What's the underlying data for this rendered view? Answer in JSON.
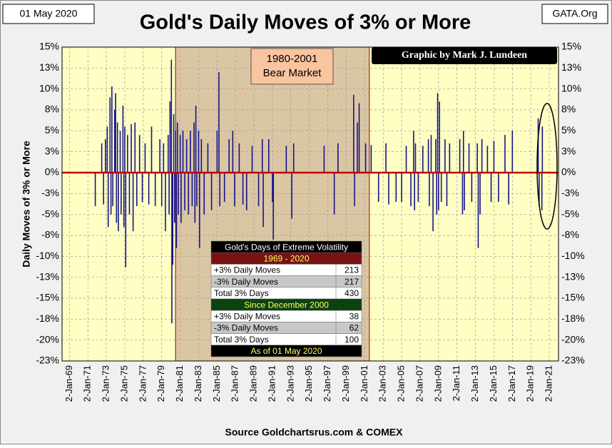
{
  "chart_data": {
    "type": "spike",
    "title": "Gold's Daily Moves of 3% or More",
    "date_label": "01 May 2020",
    "site_label": "GATA.Org",
    "y_label": "Daily  Moves  of  3%  or More",
    "source": "Source Goldchartsrus.com & COMEX",
    "credit": "Graphic by Mark J. Lundeen",
    "shade": [
      1980.5,
      2001.5
    ],
    "shade_color": "#dbc6a3",
    "shade_label": [
      "1980-2001",
      "Bear Market"
    ],
    "plot_bg": "#ffffc4",
    "zero_line_color": "#c00000",
    "grid": true,
    "xlim": [
      1968.2,
      2022.0
    ],
    "xticks": [
      {
        "value": 1969,
        "label": "2-Jan-69"
      },
      {
        "value": 1971,
        "label": "2-Jan-71"
      },
      {
        "value": 1973,
        "label": "2-Jan-73"
      },
      {
        "value": 1975,
        "label": "2-Jan-75"
      },
      {
        "value": 1977,
        "label": "2-Jan-77"
      },
      {
        "value": 1979,
        "label": "2-Jan-79"
      },
      {
        "value": 1981,
        "label": "2-Jan-81"
      },
      {
        "value": 1983,
        "label": "2-Jan-83"
      },
      {
        "value": 1985,
        "label": "2-Jan-85"
      },
      {
        "value": 1987,
        "label": "2-Jan-87"
      },
      {
        "value": 1989,
        "label": "2-Jan-89"
      },
      {
        "value": 1991,
        "label": "2-Jan-91"
      },
      {
        "value": 1993,
        "label": "2-Jan-93"
      },
      {
        "value": 1995,
        "label": "2-Jan-95"
      },
      {
        "value": 1997,
        "label": "2-Jan-97"
      },
      {
        "value": 1999,
        "label": "2-Jan-99"
      },
      {
        "value": 2001,
        "label": "2-Jan-01"
      },
      {
        "value": 2003,
        "label": "2-Jan-03"
      },
      {
        "value": 2005,
        "label": "2-Jan-05"
      },
      {
        "value": 2007,
        "label": "2-Jan-07"
      },
      {
        "value": 2009,
        "label": "2-Jan-09"
      },
      {
        "value": 2011,
        "label": "2-Jan-11"
      },
      {
        "value": 2013,
        "label": "2-Jan-13"
      },
      {
        "value": 2015,
        "label": "2-Jan-15"
      },
      {
        "value": 2017,
        "label": "2-Jan-17"
      },
      {
        "value": 2019,
        "label": "2-Jan-19"
      },
      {
        "value": 2021,
        "label": "2-Jan-21"
      }
    ],
    "ylim": [
      -22.5,
      15
    ],
    "yticks": [
      {
        "value": 15,
        "label": "15%"
      },
      {
        "value": 12.5,
        "label": "13%"
      },
      {
        "value": 10,
        "label": "10%"
      },
      {
        "value": 7.5,
        "label": "8%"
      },
      {
        "value": 5,
        "label": "5%"
      },
      {
        "value": 2.5,
        "label": "3%"
      },
      {
        "value": 0,
        "label": "0%"
      },
      {
        "value": -2.5,
        "label": "-3%"
      },
      {
        "value": -5,
        "label": "-5%"
      },
      {
        "value": -7.5,
        "label": "-8%"
      },
      {
        "value": -10,
        "label": "-10%"
      },
      {
        "value": -12.5,
        "label": "-13%"
      },
      {
        "value": -15,
        "label": "-15%"
      },
      {
        "value": -17.5,
        "label": "-18%"
      },
      {
        "value": -20,
        "label": "-20%"
      },
      {
        "value": -22.5,
        "label": "-23%"
      }
    ],
    "series": [
      {
        "color": "#14148c",
        "x": [
          1971.8,
          1972.5,
          1972.7,
          1972.9,
          1973.1,
          1973.2,
          1973.4,
          1973.5,
          1973.6,
          1973.7,
          1973.9,
          1974.0,
          1974.1,
          1974.2,
          1974.3,
          1974.5,
          1974.6,
          1974.8,
          1974.9,
          1975.0,
          1975.1,
          1975.3,
          1975.5,
          1975.7,
          1975.9,
          1976.1,
          1976.3,
          1976.6,
          1976.9,
          1977.2,
          1977.6,
          1977.9,
          1978.3,
          1978.8,
          1979.0,
          1979.2,
          1979.4,
          1979.7,
          1979.8,
          1979.9,
          1980.05,
          1980.1,
          1980.2,
          1980.3,
          1980.4,
          1980.5,
          1980.6,
          1980.7,
          1980.8,
          1981.0,
          1981.1,
          1981.3,
          1981.5,
          1981.7,
          1981.9,
          1982.1,
          1982.3,
          1982.5,
          1982.6,
          1982.7,
          1982.8,
          1983.0,
          1983.1,
          1983.3,
          1983.6,
          1984.0,
          1984.4,
          1985.0,
          1985.2,
          1985.3,
          1985.8,
          1986.3,
          1986.7,
          1986.9,
          1987.4,
          1987.8,
          1988.2,
          1988.8,
          1989.5,
          1989.9,
          1990.0,
          1990.6,
          1991.0,
          1991.1,
          1992.5,
          1993.1,
          1993.3,
          1996.6,
          1997.7,
          1998.1,
          1999.8,
          1999.9,
          2000.2,
          2000.4,
          2001.1,
          2001.7,
          2002.5,
          2003.3,
          2003.6,
          2004.4,
          2005.0,
          2005.5,
          2006.0,
          2006.3,
          2006.4,
          2006.5,
          2006.8,
          2007.3,
          2007.9,
          2008.0,
          2008.2,
          2008.4,
          2008.7,
          2008.8,
          2008.9,
          2009.0,
          2009.1,
          2009.3,
          2009.7,
          2009.9,
          2010.2,
          2011.3,
          2011.6,
          2011.7,
          2011.8,
          2012.3,
          2012.6,
          2013.2,
          2013.3,
          2013.5,
          2013.7,
          2014.3,
          2014.7,
          2015.0,
          2015.5,
          2016.2,
          2016.6,
          2017.0,
          2019.8,
          2019.9,
          2020.2,
          2020.25
        ],
        "values": [
          -4,
          3.5,
          -3.8,
          4,
          5.5,
          -6.5,
          9,
          -5,
          10.3,
          -4,
          7.5,
          9.5,
          -6,
          6,
          -7,
          5,
          -5,
          8,
          -6.5,
          5.5,
          -11.3,
          4.5,
          -5,
          5.8,
          -7,
          6,
          -4,
          4.5,
          -3.5,
          3.5,
          -3.8,
          5.5,
          -4,
          4,
          -4,
          3.5,
          -7,
          4.5,
          -5,
          8.5,
          13.5,
          -18,
          -11,
          7,
          -6,
          5,
          -9,
          6,
          -5,
          4.5,
          -6,
          5,
          -4.5,
          4,
          -5,
          5,
          -4,
          6,
          -6,
          8,
          -4,
          5,
          -9,
          4,
          -5,
          3.5,
          -4.5,
          5,
          12,
          -4,
          -3.5,
          4,
          5,
          -4,
          3.5,
          -3.8,
          -4.5,
          3.2,
          -4,
          4,
          -6.5,
          4,
          -3.5,
          -8,
          3.2,
          -5.5,
          3.5,
          3.2,
          -5,
          3.5,
          9.3,
          -4,
          6,
          8.3,
          3.5,
          3.3,
          -3.5,
          3.5,
          -3.8,
          -3.5,
          -3.5,
          3.2,
          -4,
          5,
          -4.5,
          3.5,
          -3.5,
          3.2,
          4,
          -4,
          4.5,
          -7,
          4,
          -5,
          9.5,
          -4.5,
          8.5,
          -3.5,
          4,
          -4,
          3.5,
          4,
          -5,
          5,
          -4.5,
          3.5,
          -3.5,
          3.5,
          -9,
          -5,
          4,
          3.2,
          -3.5,
          3.8,
          -3.5,
          4.5,
          -3.8,
          5,
          6.5,
          -4,
          -4.5,
          5.5
        ]
      }
    ],
    "table": {
      "title": "Gold's Days of Extreme Volatility",
      "period1": "1969 - 2020",
      "rows1": [
        [
          "+3% Daily Moves",
          213
        ],
        [
          "-3% Daily Moves",
          217
        ],
        [
          "Total 3% Days",
          430
        ]
      ],
      "period2": "Since December 2000",
      "rows2": [
        [
          "+3% Daily Moves",
          38
        ],
        [
          "-3% Daily Moves",
          62
        ],
        [
          "Total 3% Days",
          100
        ]
      ],
      "footer": "As of 01 May 2020"
    }
  }
}
